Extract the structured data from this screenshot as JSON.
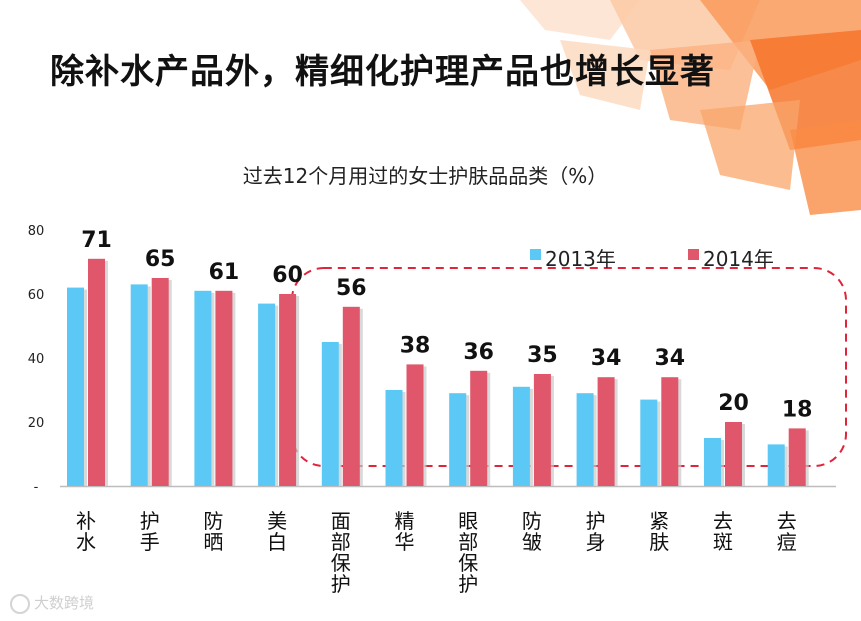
{
  "slide": {
    "title": "除补水产品外，精细化护理产品也增长显著"
  },
  "chart_data": {
    "type": "bar",
    "title": "过去12个月用过的女士护肤品品类（%）",
    "categories": [
      "补水",
      "护手",
      "防晒",
      "美白",
      "面部保护",
      "精华",
      "眼部保护",
      "防皱",
      "护身",
      "紧肤",
      "去斑",
      "去痘"
    ],
    "series": [
      {
        "name": "2013年",
        "color": "#5BC8F5",
        "values": [
          62,
          63,
          61,
          57,
          45,
          30,
          29,
          31,
          29,
          27,
          15,
          13
        ]
      },
      {
        "name": "2014年",
        "color": "#E0566B",
        "values": [
          71,
          65,
          61,
          60,
          56,
          38,
          36,
          35,
          34,
          34,
          20,
          18
        ]
      }
    ],
    "data_labels": [
      "71",
      "65",
      "61",
      "60",
      "56",
      "38",
      "36",
      "35",
      "34",
      "34",
      "20",
      "18"
    ],
    "yticks": [
      "-",
      "20",
      "40",
      "60",
      "80"
    ],
    "ylim": [
      0,
      80
    ],
    "legend_position": "top-right",
    "highlight_note": "dashed red rounded box around 面部保护 through 去痘"
  },
  "watermark": {
    "text": "大数跨境"
  }
}
